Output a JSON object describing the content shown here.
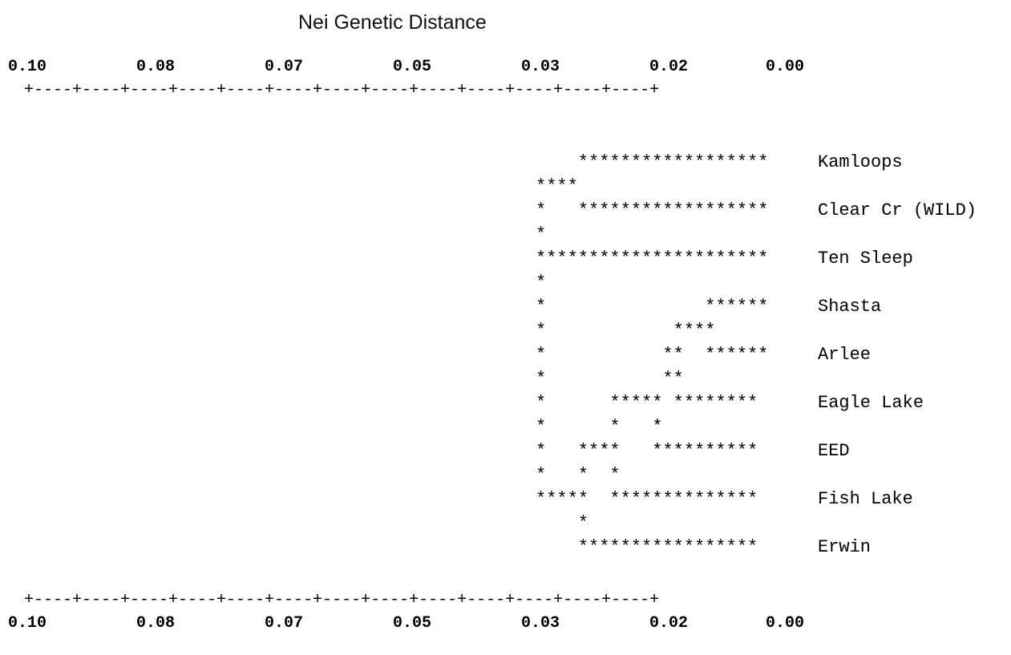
{
  "title": "Nei Genetic Distance",
  "axis": {
    "ticks": [
      "0.10",
      "0.08",
      "0.07",
      "0.05",
      "0.03",
      "0.02",
      "0.00"
    ],
    "rule": "+----+----+----+----+----+----+----+----+----+----+----+----+----+"
  },
  "dendrogram_lines": [
    "    ****************** ",
    "****",
    "*   ****************** ",
    "*",
    "********************** ",
    "*",
    "*               ****** ",
    "*            ****",
    "*           **  ****** ",
    "*           **",
    "*      ***** ******** ",
    "*      *   *",
    "*   ****   ********** ",
    "*   *  *",
    "*****  ************** ",
    "    *",
    "    ***************** "
  ],
  "taxa": [
    "Kamloops",
    "Clear Cr (WILD)",
    "Ten Sleep",
    "Shasta",
    "Arlee",
    "Eagle Lake",
    "EED",
    "Fish Lake",
    "Erwin"
  ],
  "chart_data": {
    "type": "dendrogram",
    "title": "Nei Genetic Distance",
    "axis_ticks": [
      0.1,
      0.08,
      0.07,
      0.05,
      0.03,
      0.02,
      0.0
    ],
    "leaves": [
      "Kamloops",
      "Clear Cr (WILD)",
      "Ten Sleep",
      "Shasta",
      "Arlee",
      "Eagle Lake",
      "EED",
      "Fish Lake",
      "Erwin"
    ]
  }
}
